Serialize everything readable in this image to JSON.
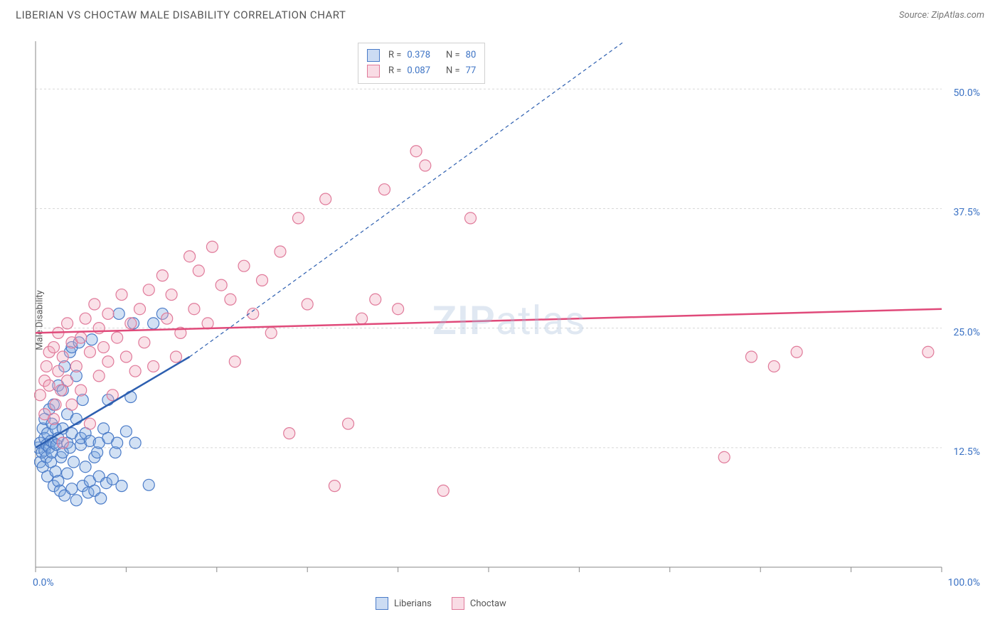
{
  "header": {
    "title": "LIBERIAN VS CHOCTAW MALE DISABILITY CORRELATION CHART",
    "source_prefix": "Source: ",
    "source_name": "ZipAtlas.com"
  },
  "watermark": {
    "zip": "ZIP",
    "atlas": "atlas"
  },
  "chart": {
    "type": "scatter",
    "ylabel": "Male Disability",
    "xlim": [
      0,
      100
    ],
    "ylim": [
      0,
      55
    ],
    "x_ticks": [
      0,
      10,
      20,
      30,
      40,
      50,
      60,
      70,
      80,
      90,
      100
    ],
    "x_tick_labels": {
      "0": "0.0%",
      "100": "100.0%"
    },
    "y_gridlines": [
      12.5,
      25.0,
      37.5,
      50.0
    ],
    "y_tick_labels": [
      "12.5%",
      "25.0%",
      "37.5%",
      "50.0%"
    ],
    "background_color": "#ffffff",
    "grid_color": "#d8d8d8",
    "axis_color": "#888888",
    "tick_label_color": "#3b72c4",
    "marker_radius": 8,
    "marker_stroke_width": 1.2,
    "marker_fill_opacity": 0.35,
    "series": [
      {
        "name": "Liberians",
        "fill_color": "#7fa8e0",
        "stroke_color": "#4a7bc8",
        "R": "0.378",
        "N": "80",
        "trend": {
          "solid": {
            "x1": 0,
            "y1": 12.5,
            "x2": 17,
            "y2": 22.0
          },
          "dashed": {
            "x1": 17,
            "y1": 22.0,
            "x2": 65,
            "y2": 55
          },
          "color": "#2d5fb0",
          "width": 2.5,
          "dash": "5,4"
        },
        "points": [
          [
            0.3,
            12.5
          ],
          [
            0.5,
            11.0
          ],
          [
            0.5,
            13.0
          ],
          [
            0.7,
            12.0
          ],
          [
            0.8,
            14.5
          ],
          [
            0.8,
            10.5
          ],
          [
            1.0,
            12.2
          ],
          [
            1.0,
            13.5
          ],
          [
            1.0,
            15.5
          ],
          [
            1.2,
            11.5
          ],
          [
            1.2,
            12.8
          ],
          [
            1.3,
            14.0
          ],
          [
            1.3,
            9.5
          ],
          [
            1.5,
            12.5
          ],
          [
            1.5,
            16.5
          ],
          [
            1.7,
            11.0
          ],
          [
            1.7,
            13.2
          ],
          [
            1.8,
            12.0
          ],
          [
            1.8,
            15.0
          ],
          [
            2.0,
            13.0
          ],
          [
            2.0,
            8.5
          ],
          [
            2.0,
            17.0
          ],
          [
            2.2,
            14.5
          ],
          [
            2.2,
            10.0
          ],
          [
            2.3,
            12.8
          ],
          [
            2.5,
            13.5
          ],
          [
            2.5,
            9.0
          ],
          [
            2.5,
            19.0
          ],
          [
            2.7,
            8.0
          ],
          [
            2.8,
            11.5
          ],
          [
            3.0,
            12.0
          ],
          [
            3.0,
            18.5
          ],
          [
            3.0,
            14.5
          ],
          [
            3.2,
            21.0
          ],
          [
            3.2,
            7.5
          ],
          [
            3.5,
            13.0
          ],
          [
            3.5,
            16.0
          ],
          [
            3.5,
            9.8
          ],
          [
            3.8,
            12.5
          ],
          [
            3.8,
            22.5
          ],
          [
            4.0,
            14.0
          ],
          [
            4.0,
            8.2
          ],
          [
            4.0,
            23.0
          ],
          [
            4.2,
            11.0
          ],
          [
            4.5,
            15.5
          ],
          [
            4.5,
            20.0
          ],
          [
            4.5,
            7.0
          ],
          [
            4.8,
            23.5
          ],
          [
            5.0,
            12.8
          ],
          [
            5.0,
            13.5
          ],
          [
            5.2,
            8.5
          ],
          [
            5.2,
            17.5
          ],
          [
            5.5,
            14.0
          ],
          [
            5.5,
            10.5
          ],
          [
            5.8,
            7.8
          ],
          [
            6.0,
            13.2
          ],
          [
            6.0,
            9.0
          ],
          [
            6.2,
            23.8
          ],
          [
            6.5,
            11.5
          ],
          [
            6.5,
            8.0
          ],
          [
            6.8,
            12.0
          ],
          [
            7.0,
            13.0
          ],
          [
            7.0,
            9.5
          ],
          [
            7.2,
            7.2
          ],
          [
            7.5,
            14.5
          ],
          [
            7.8,
            8.8
          ],
          [
            8.0,
            17.5
          ],
          [
            8.0,
            13.5
          ],
          [
            8.5,
            9.2
          ],
          [
            8.8,
            12.0
          ],
          [
            9.0,
            13.0
          ],
          [
            9.2,
            26.5
          ],
          [
            9.5,
            8.5
          ],
          [
            10.0,
            14.2
          ],
          [
            10.5,
            17.8
          ],
          [
            10.8,
            25.5
          ],
          [
            11.0,
            13.0
          ],
          [
            12.5,
            8.6
          ],
          [
            13.0,
            25.5
          ],
          [
            14.0,
            26.5
          ]
        ]
      },
      {
        "name": "Choctaw",
        "fill_color": "#f0a8be",
        "stroke_color": "#e07a9a",
        "R": "0.087",
        "N": "77",
        "trend": {
          "solid": {
            "x1": 0,
            "y1": 24.5,
            "x2": 100,
            "y2": 27.0
          },
          "color": "#e04a7a",
          "width": 2.5
        },
        "points": [
          [
            0.5,
            18.0
          ],
          [
            1.0,
            16.0
          ],
          [
            1.0,
            19.5
          ],
          [
            1.2,
            21.0
          ],
          [
            1.5,
            22.5
          ],
          [
            1.5,
            19.0
          ],
          [
            2.0,
            23.0
          ],
          [
            2.0,
            15.5
          ],
          [
            2.2,
            17.0
          ],
          [
            2.5,
            20.5
          ],
          [
            2.5,
            24.5
          ],
          [
            2.8,
            18.5
          ],
          [
            3.0,
            22.0
          ],
          [
            3.0,
            13.0
          ],
          [
            3.5,
            25.5
          ],
          [
            3.5,
            19.5
          ],
          [
            4.0,
            23.5
          ],
          [
            4.0,
            17.0
          ],
          [
            4.5,
            21.0
          ],
          [
            5.0,
            24.0
          ],
          [
            5.0,
            18.5
          ],
          [
            5.5,
            26.0
          ],
          [
            6.0,
            22.5
          ],
          [
            6.0,
            15.0
          ],
          [
            6.5,
            27.5
          ],
          [
            7.0,
            20.0
          ],
          [
            7.0,
            25.0
          ],
          [
            7.5,
            23.0
          ],
          [
            8.0,
            21.5
          ],
          [
            8.0,
            26.5
          ],
          [
            8.5,
            18.0
          ],
          [
            9.0,
            24.0
          ],
          [
            9.5,
            28.5
          ],
          [
            10.0,
            22.0
          ],
          [
            10.5,
            25.5
          ],
          [
            11.0,
            20.5
          ],
          [
            11.5,
            27.0
          ],
          [
            12.0,
            23.5
          ],
          [
            12.5,
            29.0
          ],
          [
            13.0,
            21.0
          ],
          [
            14.0,
            30.5
          ],
          [
            14.5,
            26.0
          ],
          [
            15.0,
            28.5
          ],
          [
            15.5,
            22.0
          ],
          [
            16.0,
            24.5
          ],
          [
            17.0,
            32.5
          ],
          [
            17.5,
            27.0
          ],
          [
            18.0,
            31.0
          ],
          [
            19.0,
            25.5
          ],
          [
            19.5,
            33.5
          ],
          [
            20.5,
            29.5
          ],
          [
            21.5,
            28.0
          ],
          [
            22.0,
            21.5
          ],
          [
            23.0,
            31.5
          ],
          [
            24.0,
            26.5
          ],
          [
            25.0,
            30.0
          ],
          [
            26.0,
            24.5
          ],
          [
            27.0,
            33.0
          ],
          [
            28.0,
            14.0
          ],
          [
            29.0,
            36.5
          ],
          [
            30.0,
            27.5
          ],
          [
            32.0,
            38.5
          ],
          [
            33.0,
            8.5
          ],
          [
            34.5,
            15.0
          ],
          [
            36.0,
            26.0
          ],
          [
            37.5,
            28.0
          ],
          [
            38.5,
            39.5
          ],
          [
            40.0,
            27.0
          ],
          [
            42.0,
            43.5
          ],
          [
            43.0,
            42.0
          ],
          [
            45.0,
            8.0
          ],
          [
            48.0,
            36.5
          ],
          [
            76.0,
            11.5
          ],
          [
            79.0,
            22.0
          ],
          [
            81.5,
            21.0
          ],
          [
            84.0,
            22.5
          ],
          [
            98.5,
            22.5
          ]
        ]
      }
    ]
  },
  "legend_top": {
    "R_label": "R  =",
    "N_label": "N  ="
  },
  "legend_bottom": {
    "items": [
      "Liberians",
      "Choctaw"
    ]
  }
}
